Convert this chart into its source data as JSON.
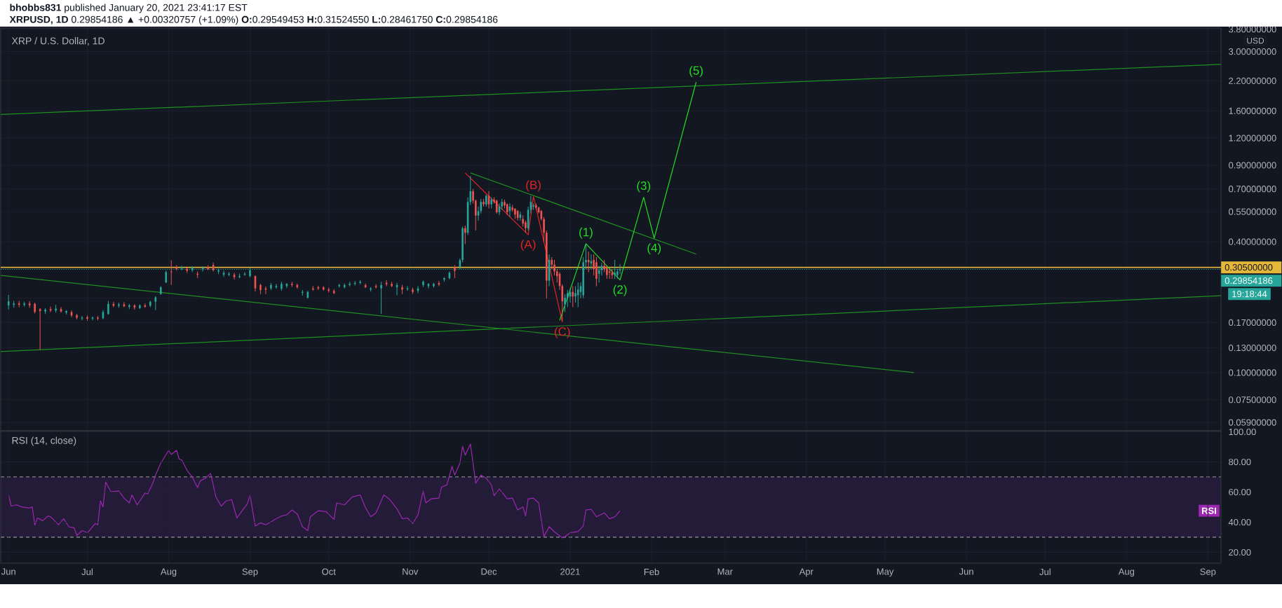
{
  "chart_data": [
    {
      "type": "candlestick",
      "title": "XRP / U.S. Dollar, 1D",
      "ylabel": "USD",
      "annotations": [
        "**bhobbs831** published January 20, 2021 23:41:17 EST",
        "**XRPUSD, 1D** 0.29854186 ▲ +0.00320757 (+1.09%) **O:**0.29549453 **H:**0.31524550 **L:**0.28461750 **C:**0.29854186",
        "19:18:44",
        {
          "text": "(A)",
          "x": "2020-12-16",
          "y": 0.431
        },
        {
          "text": "(B)",
          "x": "2020-12-18",
          "y": 0.646
        },
        {
          "text": "(C)",
          "x": "2020-12-29",
          "y": 0.171
        },
        {
          "text": "(1)",
          "x": "2021-01-07",
          "y": 0.392
        },
        {
          "text": "(2)",
          "x": "2021-01-20",
          "y": 0.267
        },
        {
          "text": "(3)",
          "x": "2021-01-29",
          "y": 0.641
        },
        {
          "text": "(4)",
          "x": "2021-02-02",
          "y": 0.415
        },
        {
          "text": "(5)",
          "x": "2021-02-18",
          "y": 2.17
        }
      ],
      "x": [
        "2020-06-01",
        "2020-06-03",
        "2020-06-05",
        "2020-06-07",
        "2020-06-09",
        "2020-06-11",
        "2020-06-13",
        "2020-06-15",
        "2020-06-17",
        "2020-06-19",
        "2020-06-21",
        "2020-06-23",
        "2020-06-25",
        "2020-06-27",
        "2020-06-29",
        "2020-07-01",
        "2020-07-03",
        "2020-07-05",
        "2020-07-07",
        "2020-07-09",
        "2020-07-11",
        "2020-07-13",
        "2020-07-15",
        "2020-07-17",
        "2020-07-19",
        "2020-07-21",
        "2020-07-23",
        "2020-07-25",
        "2020-07-27",
        "2020-07-29",
        "2020-07-31",
        "2020-08-02",
        "2020-08-04",
        "2020-08-06",
        "2020-08-08",
        "2020-08-10",
        "2020-08-12",
        "2020-08-14",
        "2020-08-16",
        "2020-08-18",
        "2020-08-20",
        "2020-08-22",
        "2020-08-24",
        "2020-08-26",
        "2020-08-28",
        "2020-08-30",
        "2020-09-01",
        "2020-09-03",
        "2020-09-05",
        "2020-09-07",
        "2020-09-09",
        "2020-09-11",
        "2020-09-13",
        "2020-09-15",
        "2020-09-17",
        "2020-09-19",
        "2020-09-21",
        "2020-09-23",
        "2020-09-25",
        "2020-09-27",
        "2020-09-29",
        "2020-10-01",
        "2020-10-03",
        "2020-10-05",
        "2020-10-07",
        "2020-10-09",
        "2020-10-11",
        "2020-10-13",
        "2020-10-15",
        "2020-10-17",
        "2020-10-19",
        "2020-10-21",
        "2020-10-23",
        "2020-10-25",
        "2020-10-27",
        "2020-10-29",
        "2020-10-31",
        "2020-11-02",
        "2020-11-04",
        "2020-11-06",
        "2020-11-08",
        "2020-11-10",
        "2020-11-12",
        "2020-11-14",
        "2020-11-16",
        "2020-11-18",
        "2020-11-20",
        "2020-11-21",
        "2020-11-22",
        "2020-11-23",
        "2020-11-24",
        "2020-11-25",
        "2020-11-26",
        "2020-11-27",
        "2020-11-28",
        "2020-11-29",
        "2020-11-30",
        "2020-12-01",
        "2020-12-02",
        "2020-12-03",
        "2020-12-04",
        "2020-12-05",
        "2020-12-06",
        "2020-12-07",
        "2020-12-08",
        "2020-12-09",
        "2020-12-10",
        "2020-12-11",
        "2020-12-12",
        "2020-12-13",
        "2020-12-14",
        "2020-12-15",
        "2020-12-16",
        "2020-12-17",
        "2020-12-18",
        "2020-12-19",
        "2020-12-20",
        "2020-12-21",
        "2020-12-22",
        "2020-12-23",
        "2020-12-24",
        "2020-12-25",
        "2020-12-26",
        "2020-12-27",
        "2020-12-28",
        "2020-12-29",
        "2020-12-30",
        "2020-12-31",
        "2021-01-01",
        "2021-01-02",
        "2021-01-03",
        "2021-01-04",
        "2021-01-05",
        "2021-01-06",
        "2021-01-07",
        "2021-01-08",
        "2021-01-09",
        "2021-01-10",
        "2021-01-11",
        "2021-01-12",
        "2021-01-13",
        "2021-01-14",
        "2021-01-15",
        "2021-01-16",
        "2021-01-17",
        "2021-01-18",
        "2021-01-19",
        "2021-01-20"
      ],
      "ohlc": [
        [
          0.204,
          0.228,
          0.195,
          0.213
        ],
        [
          0.205,
          0.214,
          0.199,
          0.208
        ],
        [
          0.208,
          0.214,
          0.2,
          0.205
        ],
        [
          0.205,
          0.212,
          0.201,
          0.208
        ],
        [
          0.208,
          0.213,
          0.199,
          0.204
        ],
        [
          0.207,
          0.21,
          0.187,
          0.19
        ],
        [
          0.196,
          0.198,
          0.127,
          0.192
        ],
        [
          0.191,
          0.198,
          0.186,
          0.195
        ],
        [
          0.196,
          0.201,
          0.19,
          0.193
        ],
        [
          0.193,
          0.205,
          0.189,
          0.197
        ],
        [
          0.196,
          0.2,
          0.189,
          0.191
        ],
        [
          0.189,
          0.194,
          0.185,
          0.192
        ],
        [
          0.19,
          0.193,
          0.18,
          0.183
        ],
        [
          0.184,
          0.186,
          0.176,
          0.179
        ],
        [
          0.177,
          0.182,
          0.174,
          0.179
        ],
        [
          0.18,
          0.183,
          0.173,
          0.177
        ],
        [
          0.177,
          0.181,
          0.174,
          0.179
        ],
        [
          0.179,
          0.182,
          0.174,
          0.177
        ],
        [
          0.178,
          0.194,
          0.176,
          0.19
        ],
        [
          0.186,
          0.214,
          0.185,
          0.207
        ],
        [
          0.207,
          0.212,
          0.2,
          0.203
        ],
        [
          0.203,
          0.21,
          0.199,
          0.206
        ],
        [
          0.206,
          0.211,
          0.2,
          0.202
        ],
        [
          0.201,
          0.207,
          0.196,
          0.204
        ],
        [
          0.204,
          0.206,
          0.195,
          0.199
        ],
        [
          0.198,
          0.206,
          0.196,
          0.204
        ],
        [
          0.204,
          0.208,
          0.199,
          0.201
        ],
        [
          0.203,
          0.214,
          0.2,
          0.212
        ],
        [
          0.212,
          0.225,
          0.194,
          0.222
        ],
        [
          0.23,
          0.25,
          0.228,
          0.247
        ],
        [
          0.26,
          0.295,
          0.258,
          0.29
        ],
        [
          0.292,
          0.329,
          0.253,
          0.29
        ],
        [
          0.306,
          0.312,
          0.295,
          0.3
        ],
        [
          0.301,
          0.31,
          0.296,
          0.305
        ],
        [
          0.3,
          0.304,
          0.288,
          0.294
        ],
        [
          0.296,
          0.309,
          0.29,
          0.306
        ],
        [
          0.285,
          0.292,
          0.272,
          0.282
        ],
        [
          0.299,
          0.309,
          0.292,
          0.303
        ],
        [
          0.306,
          0.312,
          0.296,
          0.299
        ],
        [
          0.313,
          0.321,
          0.292,
          0.296
        ],
        [
          0.292,
          0.301,
          0.284,
          0.296
        ],
        [
          0.282,
          0.295,
          0.276,
          0.288
        ],
        [
          0.282,
          0.29,
          0.278,
          0.285
        ],
        [
          0.282,
          0.288,
          0.268,
          0.275
        ],
        [
          0.275,
          0.285,
          0.272,
          0.278
        ],
        [
          0.282,
          0.29,
          0.279,
          0.285
        ],
        [
          0.278,
          0.305,
          0.275,
          0.296
        ],
        [
          0.278,
          0.28,
          0.236,
          0.244
        ],
        [
          0.253,
          0.256,
          0.23,
          0.24
        ],
        [
          0.244,
          0.249,
          0.23,
          0.241
        ],
        [
          0.244,
          0.259,
          0.24,
          0.253
        ],
        [
          0.247,
          0.256,
          0.243,
          0.25
        ],
        [
          0.243,
          0.262,
          0.238,
          0.256
        ],
        [
          0.25,
          0.258,
          0.245,
          0.256
        ],
        [
          0.256,
          0.262,
          0.248,
          0.253
        ],
        [
          0.253,
          0.257,
          0.243,
          0.247
        ],
        [
          0.233,
          0.24,
          0.226,
          0.235
        ],
        [
          0.221,
          0.238,
          0.219,
          0.235
        ],
        [
          0.244,
          0.25,
          0.238,
          0.241
        ],
        [
          0.247,
          0.251,
          0.24,
          0.244
        ],
        [
          0.247,
          0.25,
          0.238,
          0.241
        ],
        [
          0.241,
          0.246,
          0.234,
          0.238
        ],
        [
          0.238,
          0.242,
          0.23,
          0.232
        ],
        [
          0.25,
          0.256,
          0.246,
          0.253
        ],
        [
          0.247,
          0.257,
          0.244,
          0.253
        ],
        [
          0.253,
          0.262,
          0.25,
          0.256
        ],
        [
          0.256,
          0.264,
          0.252,
          0.259
        ],
        [
          0.259,
          0.266,
          0.255,
          0.262
        ],
        [
          0.253,
          0.257,
          0.245,
          0.247
        ],
        [
          0.241,
          0.247,
          0.236,
          0.244
        ],
        [
          0.25,
          0.255,
          0.244,
          0.247
        ],
        [
          0.244,
          0.262,
          0.186,
          0.253
        ],
        [
          0.259,
          0.266,
          0.25,
          0.255
        ],
        [
          0.256,
          0.262,
          0.248,
          0.25
        ],
        [
          0.247,
          0.259,
          0.227,
          0.253
        ],
        [
          0.247,
          0.253,
          0.23,
          0.241
        ],
        [
          0.242,
          0.25,
          0.238,
          0.244
        ],
        [
          0.241,
          0.246,
          0.23,
          0.235
        ],
        [
          0.238,
          0.25,
          0.232,
          0.244
        ],
        [
          0.253,
          0.265,
          0.248,
          0.262
        ],
        [
          0.25,
          0.258,
          0.244,
          0.256
        ],
        [
          0.25,
          0.259,
          0.246,
          0.256
        ],
        [
          0.258,
          0.264,
          0.25,
          0.254
        ],
        [
          0.268,
          0.275,
          0.262,
          0.272
        ],
        [
          0.272,
          0.292,
          0.268,
          0.288
        ],
        [
          0.306,
          0.312,
          0.272,
          0.294
        ],
        [
          0.306,
          0.335,
          0.3,
          0.329
        ],
        [
          0.33,
          0.47,
          0.322,
          0.462
        ],
        [
          0.462,
          0.475,
          0.39,
          0.44
        ],
        [
          0.44,
          0.64,
          0.43,
          0.61
        ],
        [
          0.61,
          0.805,
          0.59,
          0.683
        ],
        [
          0.683,
          0.7,
          0.6,
          0.618
        ],
        [
          0.618,
          0.625,
          0.451,
          0.528
        ],
        [
          0.528,
          0.58,
          0.5,
          0.554
        ],
        [
          0.554,
          0.63,
          0.54,
          0.61
        ],
        [
          0.61,
          0.63,
          0.58,
          0.595
        ],
        [
          0.595,
          0.66,
          0.58,
          0.651
        ],
        [
          0.651,
          0.683,
          0.57,
          0.595
        ],
        [
          0.595,
          0.64,
          0.57,
          0.625
        ],
        [
          0.625,
          0.64,
          0.6,
          0.61
        ],
        [
          0.618,
          0.625,
          0.54,
          0.547
        ],
        [
          0.547,
          0.6,
          0.53,
          0.581
        ],
        [
          0.581,
          0.63,
          0.56,
          0.61
        ],
        [
          0.61,
          0.625,
          0.57,
          0.588
        ],
        [
          0.595,
          0.6,
          0.53,
          0.547
        ],
        [
          0.554,
          0.6,
          0.52,
          0.581
        ],
        [
          0.574,
          0.59,
          0.55,
          0.561
        ],
        [
          0.568,
          0.57,
          0.51,
          0.534
        ],
        [
          0.554,
          0.56,
          0.5,
          0.515
        ],
        [
          0.515,
          0.55,
          0.5,
          0.534
        ],
        [
          0.509,
          0.53,
          0.47,
          0.485
        ],
        [
          0.491,
          0.5,
          0.44,
          0.462
        ],
        [
          0.462,
          0.58,
          0.45,
          0.561
        ],
        [
          0.561,
          0.651,
          0.54,
          0.61
        ],
        [
          0.581,
          0.6,
          0.56,
          0.588
        ],
        [
          0.588,
          0.6,
          0.56,
          0.574
        ],
        [
          0.574,
          0.58,
          0.54,
          0.547
        ],
        [
          0.554,
          0.56,
          0.5,
          0.509
        ],
        [
          0.509,
          0.52,
          0.4,
          0.44
        ],
        [
          0.44,
          0.45,
          0.219,
          0.265
        ],
        [
          0.265,
          0.35,
          0.25,
          0.33
        ],
        [
          0.33,
          0.34,
          0.3,
          0.314
        ],
        [
          0.314,
          0.33,
          0.28,
          0.292
        ],
        [
          0.292,
          0.3,
          0.26,
          0.278
        ],
        [
          0.285,
          0.29,
          0.24,
          0.25
        ],
        [
          0.25,
          0.255,
          0.172,
          0.213
        ],
        [
          0.206,
          0.23,
          0.19,
          0.221
        ],
        [
          0.221,
          0.24,
          0.2,
          0.232
        ],
        [
          0.224,
          0.245,
          0.21,
          0.235
        ],
        [
          0.235,
          0.25,
          0.2,
          0.224
        ],
        [
          0.224,
          0.25,
          0.21,
          0.232
        ],
        [
          0.227,
          0.26,
          0.2,
          0.241
        ],
        [
          0.235,
          0.26,
          0.22,
          0.25
        ],
        [
          0.227,
          0.34,
          0.22,
          0.322
        ],
        [
          0.322,
          0.39,
          0.3,
          0.33
        ],
        [
          0.33,
          0.36,
          0.29,
          0.322
        ],
        [
          0.318,
          0.35,
          0.3,
          0.326
        ],
        [
          0.33,
          0.35,
          0.28,
          0.299
        ],
        [
          0.322,
          0.34,
          0.25,
          0.27
        ],
        [
          0.285,
          0.31,
          0.26,
          0.296
        ],
        [
          0.296,
          0.32,
          0.28,
          0.31
        ],
        [
          0.31,
          0.33,
          0.29,
          0.299
        ],
        [
          0.302,
          0.31,
          0.27,
          0.281
        ],
        [
          0.292,
          0.3,
          0.27,
          0.288
        ],
        [
          0.288,
          0.3,
          0.27,
          0.281
        ],
        [
          0.281,
          0.33,
          0.27,
          0.288
        ],
        [
          0.281,
          0.3,
          0.27,
          0.292
        ],
        [
          0.29549453,
          0.3152455,
          0.2846175,
          0.29854186
        ]
      ],
      "colors": [
        "#26a69a",
        "#26a69a",
        "#ef5350",
        "#26a69a",
        "#ef5350",
        "#ef5350",
        "#ef5350",
        "#26a69a",
        "#ef5350",
        "#26a69a",
        "#ef5350",
        "#26a69a",
        "#ef5350",
        "#ef5350",
        "#26a69a",
        "#ef5350",
        "#26a69a",
        "#ef5350",
        "#26a69a",
        "#26a69a",
        "#ef5350",
        "#26a69a",
        "#ef5350",
        "#26a69a",
        "#ef5350",
        "#26a69a",
        "#ef5350",
        "#26a69a",
        "#26a69a",
        "#26a69a",
        "#26a69a",
        "#ef5350",
        "#ef5350",
        "#26a69a",
        "#ef5350",
        "#26a69a",
        "#ef5350",
        "#26a69a",
        "#ef5350",
        "#ef5350",
        "#26a69a",
        "#26a69a",
        "#26a69a",
        "#ef5350",
        "#26a69a",
        "#26a69a",
        "#26a69a",
        "#ef5350",
        "#ef5350",
        "#ef5350",
        "#26a69a",
        "#26a69a",
        "#26a69a",
        "#26a69a",
        "#ef5350",
        "#ef5350",
        "#26a69a",
        "#26a69a",
        "#ef5350",
        "#ef5350",
        "#ef5350",
        "#ef5350",
        "#ef5350",
        "#26a69a",
        "#26a69a",
        "#26a69a",
        "#26a69a",
        "#26a69a",
        "#ef5350",
        "#26a69a",
        "#ef5350",
        "#26a69a",
        "#ef5350",
        "#ef5350",
        "#26a69a",
        "#ef5350",
        "#26a69a",
        "#ef5350",
        "#26a69a",
        "#26a69a",
        "#26a69a",
        "#26a69a",
        "#ef5350",
        "#26a69a",
        "#26a69a",
        "#ef5350",
        "#26a69a",
        "#26a69a",
        "#ef5350",
        "#26a69a",
        "#26a69a",
        "#ef5350",
        "#ef5350",
        "#26a69a",
        "#26a69a",
        "#ef5350",
        "#26a69a",
        "#ef5350",
        "#26a69a",
        "#ef5350",
        "#ef5350",
        "#26a69a",
        "#26a69a",
        "#ef5350",
        "#ef5350",
        "#26a69a",
        "#ef5350",
        "#ef5350",
        "#ef5350",
        "#26a69a",
        "#ef5350",
        "#ef5350",
        "#26a69a",
        "#26a69a",
        "#26a69a",
        "#ef5350",
        "#ef5350",
        "#ef5350",
        "#ef5350",
        "#ef5350",
        "#26a69a",
        "#ef5350",
        "#ef5350",
        "#ef5350",
        "#ef5350",
        "#ef5350",
        "#26a69a",
        "#26a69a",
        "#26a69a",
        "#ef5350",
        "#26a69a",
        "#26a69a",
        "#26a69a",
        "#26a69a",
        "#26a69a",
        "#ef5350",
        "#26a69a",
        "#ef5350",
        "#ef5350",
        "#26a69a",
        "#26a69a",
        "#ef5350",
        "#ef5350",
        "#ef5350",
        "#ef5350",
        "#26a69a",
        "#26a69a",
        "#26a69a"
      ],
      "series": [
        {
          "type": "line",
          "color": "#1f8f1f",
          "x": [
            "2020-05-29",
            "2021-09-06"
          ],
          "values": [
            1.54,
            2.62
          ]
        },
        {
          "type": "line",
          "color": "#1f8f1f",
          "x": [
            "2020-05-29",
            "2021-09-06"
          ],
          "values": [
            0.125,
            0.226
          ]
        },
        {
          "type": "line",
          "color": "#1f8f1f",
          "x": [
            "2020-05-29",
            "2021-05-12"
          ],
          "values": [
            0.28,
            0.1
          ]
        },
        {
          "type": "line",
          "color": "#1f8f1f",
          "x": [
            "2020-11-24",
            "2021-02-18"
          ],
          "values": [
            0.829,
            0.351
          ]
        },
        {
          "type": "line",
          "color": "#e02424",
          "x": [
            "2020-11-22",
            "2020-12-16",
            "2020-12-18",
            "2020-12-29"
          ],
          "values": [
            0.829,
            0.431,
            0.646,
            0.171
          ]
        },
        {
          "type": "line",
          "color": "#22dd22",
          "x": [
            "2020-12-28",
            "2021-01-07",
            "2021-01-20",
            "2021-01-29",
            "2021-02-02",
            "2021-02-18"
          ],
          "values": [
            0.174,
            0.392,
            0.267,
            0.641,
            0.415,
            2.17
          ]
        }
      ],
      "ref_lines": [
        {
          "axis": "y",
          "value": 0.305,
          "label": "0.30500000",
          "color": "#e6b83a"
        },
        {
          "axis": "y",
          "value": 0.29854186,
          "label": "0.29854186",
          "color": "#26a69a",
          "line_style": "dotted"
        }
      ],
      "xlim": [
        "2020-05-29",
        "2021-09-06"
      ],
      "ylim": [
        0.054,
        3.85
      ],
      "log": true,
      "xticks": [
        {
          "value": "2020-06-01",
          "label": null
        },
        {
          "value": "2020-07-01",
          "label": null
        },
        {
          "value": "2020-08-01",
          "label": null
        },
        {
          "value": "2020-09-01",
          "label": null
        },
        {
          "value": "2020-10-01",
          "label": null
        },
        {
          "value": "2020-11-01",
          "label": null
        },
        {
          "value": "2020-12-01",
          "label": null
        },
        {
          "value": "2021-01-01",
          "label": null
        },
        {
          "value": "2021-02-01",
          "label": null
        },
        {
          "value": "2021-03-01",
          "label": null
        },
        {
          "value": "2021-04-01",
          "label": null
        },
        {
          "value": "2021-05-01",
          "label": null
        },
        {
          "value": "2021-06-01",
          "label": null
        },
        {
          "value": "2021-07-01",
          "label": null
        },
        {
          "value": "2021-08-01",
          "label": null
        },
        {
          "value": "2021-09-01",
          "label": null
        }
      ],
      "yticks": [
        {
          "value": 0.059,
          "label": "0.05900000"
        },
        {
          "value": 0.075,
          "label": "0.07500000"
        },
        {
          "value": 0.1,
          "label": "0.10000000"
        },
        {
          "value": 0.13,
          "label": "0.13000000"
        },
        {
          "value": 0.17,
          "label": "0.17000000"
        },
        {
          "value": 0.22,
          "label": null
        },
        {
          "value": 0.3,
          "label": null
        },
        {
          "value": 0.4,
          "label": "0.40000000"
        },
        {
          "value": 0.55,
          "label": "0.55000000"
        },
        {
          "value": 0.7,
          "label": "0.70000000"
        },
        {
          "value": 0.9,
          "label": "0.90000000"
        },
        {
          "value": 1.2,
          "label": "1.20000000"
        },
        {
          "value": 1.6,
          "label": "1.60000000"
        },
        {
          "value": 2.2,
          "label": "2.20000000"
        },
        {
          "value": 3.0,
          "label": "3.00000000"
        },
        {
          "value": 3.8,
          "label": "3.80000000"
        }
      ],
      "grid": true,
      "tick_labels": "y"
    },
    {
      "type": "line",
      "title": "RSI (14, close)",
      "series": [
        {
          "name": "RSI",
          "color": "#9c27b0",
          "x": [
            "2020-06-01",
            "2020-06-02",
            "2020-06-04",
            "2020-06-06",
            "2020-06-09",
            "2020-06-10",
            "2020-06-11",
            "2020-06-12",
            "2020-06-14",
            "2020-06-16",
            "2020-06-17",
            "2020-06-19",
            "2020-06-20",
            "2020-06-22",
            "2020-06-24",
            "2020-06-26",
            "2020-06-27",
            "2020-06-29",
            "2020-07-01",
            "2020-07-02",
            "2020-07-04",
            "2020-07-05",
            "2020-07-06",
            "2020-07-07",
            "2020-07-08",
            "2020-07-10",
            "2020-07-13",
            "2020-07-15",
            "2020-07-17",
            "2020-07-18",
            "2020-07-20",
            "2020-07-23",
            "2020-07-24",
            "2020-07-26",
            "2020-07-27",
            "2020-07-29",
            "2020-08-01",
            "2020-08-02",
            "2020-08-04",
            "2020-08-05",
            "2020-08-06",
            "2020-08-08",
            "2020-08-10",
            "2020-08-12",
            "2020-08-13",
            "2020-08-15",
            "2020-08-17",
            "2020-08-19",
            "2020-08-21",
            "2020-08-23",
            "2020-08-25",
            "2020-08-27",
            "2020-08-29",
            "2020-08-31",
            "2020-09-01",
            "2020-09-03",
            "2020-09-05",
            "2020-09-07",
            "2020-09-09",
            "2020-09-11",
            "2020-09-13",
            "2020-09-15",
            "2020-09-17",
            "2020-09-19",
            "2020-09-21",
            "2020-09-23",
            "2020-09-24",
            "2020-09-27",
            "2020-09-30",
            "2020-10-03",
            "2020-10-04",
            "2020-10-07",
            "2020-10-10",
            "2020-10-13",
            "2020-10-15",
            "2020-10-17",
            "2020-10-19",
            "2020-10-22",
            "2020-10-24",
            "2020-10-27",
            "2020-10-29",
            "2020-10-31",
            "2020-11-02",
            "2020-11-04",
            "2020-11-06",
            "2020-11-07",
            "2020-11-09",
            "2020-11-12",
            "2020-11-13",
            "2020-11-15",
            "2020-11-17",
            "2020-11-18",
            "2020-11-20",
            "2020-11-21",
            "2020-11-22",
            "2020-11-24",
            "2020-11-26",
            "2020-11-28",
            "2020-11-30",
            "2020-12-02",
            "2020-12-03",
            "2020-12-05",
            "2020-12-08",
            "2020-12-10",
            "2020-12-12",
            "2020-12-14",
            "2020-12-15",
            "2020-12-16",
            "2020-12-18",
            "2020-12-20",
            "2020-12-22",
            "2020-12-24",
            "2020-12-26",
            "2020-12-29",
            "2020-12-30",
            "2021-01-01",
            "2021-01-04",
            "2021-01-06",
            "2021-01-07",
            "2021-01-09",
            "2021-01-11",
            "2021-01-14",
            "2021-01-16",
            "2021-01-18",
            "2021-01-20"
          ],
          "values": [
            58.1,
            50.7,
            51.5,
            50.2,
            49.4,
            50.2,
            38.1,
            42.8,
            41,
            44.1,
            43.6,
            40.2,
            38.3,
            42.3,
            37,
            36.2,
            31.2,
            34.4,
            33,
            34.9,
            39.1,
            38.3,
            54.2,
            50.2,
            66.6,
            60.2,
            60.8,
            56,
            52.8,
            58.1,
            51.5,
            59.4,
            58.7,
            66,
            71.3,
            79.2,
            87.7,
            85,
            87.7,
            81.9,
            81.3,
            74.5,
            70,
            62.9,
            67.4,
            69.2,
            72.4,
            56.8,
            50.7,
            54.2,
            55,
            42.8,
            47.6,
            52.3,
            58.1,
            37.5,
            39.6,
            38.3,
            40.2,
            42.3,
            44.1,
            44.9,
            48.1,
            45.5,
            37,
            34.4,
            43.6,
            47.6,
            47,
            41.8,
            52.8,
            51.5,
            56.8,
            58.1,
            49.7,
            43.6,
            46.2,
            58.1,
            55.5,
            48.9,
            42.3,
            42.8,
            39.1,
            44.9,
            60.8,
            52.8,
            55.5,
            56,
            63.4,
            64.7,
            77.1,
            71.3,
            79.2,
            90.3,
            84.5,
            91.9,
            66,
            71.3,
            69.2,
            64.7,
            57.6,
            62.1,
            55.5,
            56,
            48.1,
            50.2,
            44.1,
            55.5,
            56,
            52.8,
            30.4,
            37,
            33.6,
            29.6,
            30.4,
            33,
            33.8,
            37.5,
            48.1,
            48.6,
            43.6,
            46.2,
            42.3,
            43.6,
            47.6
          ]
        }
      ],
      "ref_lines": [
        {
          "axis": "y",
          "value": 70,
          "color": "#c8cad0",
          "line_style": "dashed"
        },
        {
          "axis": "y",
          "value": 30,
          "color": "#c8cad0",
          "line_style": "dashed"
        }
      ],
      "bands": [
        {
          "axis": "y",
          "from": 30,
          "to": 70,
          "color": "#241b38"
        }
      ],
      "xlim": [
        "2020-05-29",
        "2021-09-06"
      ],
      "ylim": [
        12.8,
        100.7
      ],
      "xticks": [
        {
          "value": "2020-06-01",
          "label": "Jun"
        },
        {
          "value": "2020-07-01",
          "label": "Jul"
        },
        {
          "value": "2020-08-01",
          "label": "Aug"
        },
        {
          "value": "2020-09-01",
          "label": "Sep"
        },
        {
          "value": "2020-10-01",
          "label": "Oct"
        },
        {
          "value": "2020-11-01",
          "label": "Nov"
        },
        {
          "value": "2020-12-01",
          "label": "Dec"
        },
        {
          "value": "2021-01-01",
          "label": "2021"
        },
        {
          "value": "2021-02-01",
          "label": "Feb"
        },
        {
          "value": "2021-03-01",
          "label": "Mar"
        },
        {
          "value": "2021-04-01",
          "label": "Apr"
        },
        {
          "value": "2021-05-01",
          "label": "May"
        },
        {
          "value": "2021-06-01",
          "label": "Jun"
        },
        {
          "value": "2021-07-01",
          "label": "Jul"
        },
        {
          "value": "2021-08-01",
          "label": "Aug"
        },
        {
          "value": "2021-09-01",
          "label": "Sep"
        }
      ],
      "yticks": [
        {
          "value": 20,
          "label": "20.00"
        },
        {
          "value": 40,
          "label": "40.00"
        },
        {
          "value": 60,
          "label": "60.00"
        },
        {
          "value": 80,
          "label": "80.00"
        },
        {
          "value": 100,
          "label": "100.00"
        }
      ],
      "grid": true
    }
  ]
}
